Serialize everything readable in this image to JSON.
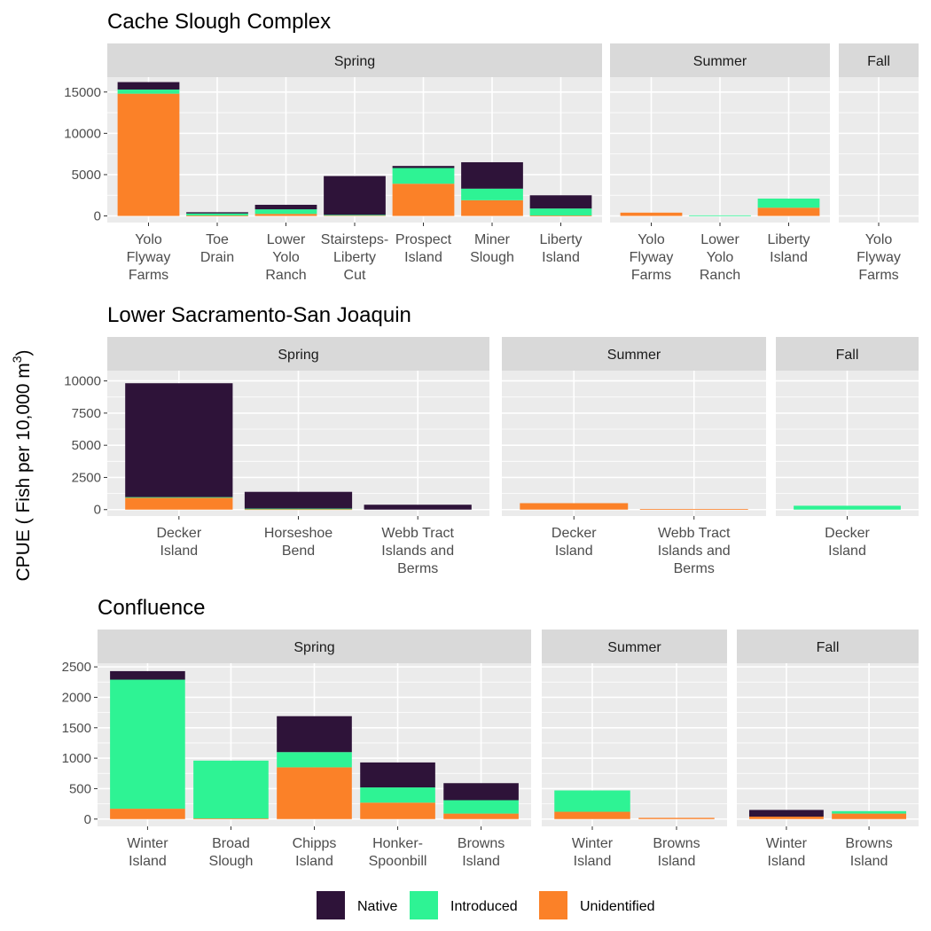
{
  "ylabel": "CPUE ( Fish per 10,000 m",
  "ylabel_sup": "3",
  "ylabel_close": ")",
  "legend": [
    {
      "name": "Native",
      "color": "#2E1339"
    },
    {
      "name": "Introduced",
      "color": "#2EF394"
    },
    {
      "name": "Unidentified",
      "color": "#FB8128"
    }
  ],
  "chart_data": [
    {
      "type": "bar",
      "stacked": true,
      "title": "Cache Slough Complex",
      "ylim": [
        -800,
        16800
      ],
      "yticks": [
        0,
        5000,
        10000,
        15000
      ],
      "facets": [
        {
          "label": "Spring",
          "categories": [
            "Yolo\nFlyway\nFarms",
            "Toe\nDrain",
            "Lower\nYolo\nRanch",
            "Stairsteps-\nLiberty\nCut",
            "Prospect\nIsland",
            "Miner\nSlough",
            "Liberty\nIsland"
          ],
          "series": [
            {
              "name": "Unidentified",
              "values": [
                14800,
                50,
                250,
                100,
                3900,
                1900,
                50
              ]
            },
            {
              "name": "Introduced",
              "values": [
                500,
                250,
                550,
                30,
                1900,
                1400,
                850
              ]
            },
            {
              "name": "Native",
              "values": [
                900,
                150,
                550,
                4700,
                250,
                3200,
                1600
              ]
            }
          ]
        },
        {
          "label": "Summer",
          "categories": [
            "Yolo\nFlyway\nFarms",
            "Lower\nYolo\nRanch",
            "Liberty\nIsland"
          ],
          "series": [
            {
              "name": "Unidentified",
              "values": [
                400,
                0,
                1000
              ]
            },
            {
              "name": "Introduced",
              "values": [
                0,
                70,
                1100
              ]
            },
            {
              "name": "Native",
              "values": [
                0,
                0,
                0
              ]
            }
          ]
        },
        {
          "label": "Fall",
          "categories": [
            "Yolo\nFlyway\nFarms"
          ],
          "series": [
            {
              "name": "Unidentified",
              "values": [
                0
              ]
            },
            {
              "name": "Introduced",
              "values": [
                0
              ]
            },
            {
              "name": "Native",
              "values": [
                0
              ]
            }
          ]
        }
      ]
    },
    {
      "type": "bar",
      "stacked": true,
      "title": "Lower Sacramento-San Joaquin",
      "ylim": [
        -500,
        10800
      ],
      "yticks": [
        0,
        2500,
        5000,
        7500,
        10000
      ],
      "facets": [
        {
          "label": "Spring",
          "categories": [
            "Decker\nIsland",
            "Horseshoe\nBend",
            "Webb Tract\nIslands and\nBerms"
          ],
          "series": [
            {
              "name": "Unidentified",
              "values": [
                950,
                30,
                0
              ]
            },
            {
              "name": "Introduced",
              "values": [
                20,
                50,
                0
              ]
            },
            {
              "name": "Native",
              "values": [
                8850,
                1300,
                380
              ]
            }
          ]
        },
        {
          "label": "Summer",
          "categories": [
            "Decker\nIsland",
            "Webb Tract\nIslands and\nBerms"
          ],
          "series": [
            {
              "name": "Unidentified",
              "values": [
                500,
                40
              ]
            },
            {
              "name": "Introduced",
              "values": [
                0,
                0
              ]
            },
            {
              "name": "Native",
              "values": [
                0,
                0
              ]
            }
          ]
        },
        {
          "label": "Fall",
          "categories": [
            "Decker\nIsland"
          ],
          "series": [
            {
              "name": "Unidentified",
              "values": [
                0
              ]
            },
            {
              "name": "Introduced",
              "values": [
                300
              ]
            },
            {
              "name": "Native",
              "values": [
                0
              ]
            }
          ]
        }
      ]
    },
    {
      "type": "bar",
      "stacked": true,
      "title": "Confluence",
      "ylim": [
        -120,
        2560
      ],
      "yticks": [
        0,
        500,
        1000,
        1500,
        2000,
        2500
      ],
      "facets": [
        {
          "label": "Spring",
          "categories": [
            "Winter\nIsland",
            "Broad\nSlough",
            "Chipps\nIsland",
            "Honker-\nSpoonbill",
            "Browns\nIsland"
          ],
          "series": [
            {
              "name": "Unidentified",
              "values": [
                170,
                10,
                850,
                270,
                90
              ]
            },
            {
              "name": "Introduced",
              "values": [
                2120,
                950,
                250,
                250,
                220
              ]
            },
            {
              "name": "Native",
              "values": [
                140,
                0,
                590,
                410,
                280
              ]
            }
          ]
        },
        {
          "label": "Summer",
          "categories": [
            "Winter\nIsland",
            "Browns\nIsland"
          ],
          "series": [
            {
              "name": "Unidentified",
              "values": [
                120,
                20
              ]
            },
            {
              "name": "Introduced",
              "values": [
                350,
                0
              ]
            },
            {
              "name": "Native",
              "values": [
                0,
                0
              ]
            }
          ]
        },
        {
          "label": "Fall",
          "categories": [
            "Winter\nIsland",
            "Browns\nIsland"
          ],
          "series": [
            {
              "name": "Unidentified",
              "values": [
                40,
                90
              ]
            },
            {
              "name": "Introduced",
              "values": [
                0,
                40
              ]
            },
            {
              "name": "Native",
              "values": [
                110,
                0
              ]
            }
          ]
        }
      ]
    }
  ]
}
